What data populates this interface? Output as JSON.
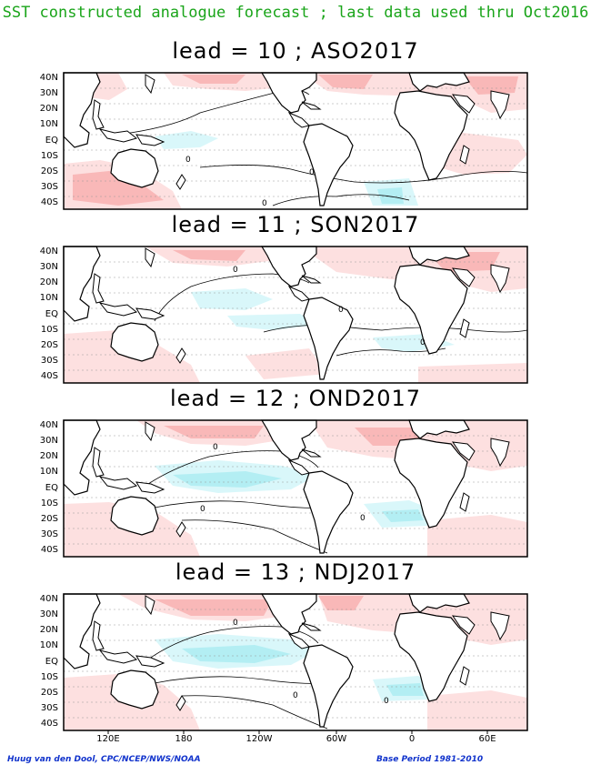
{
  "header": {
    "title": "SST constructed analogue forecast ; last data used thru Oct2016"
  },
  "panels": [
    {
      "title": "lead = 10 ; ASO2017"
    },
    {
      "title": "lead = 11 ; SON2017"
    },
    {
      "title": "lead = 12 ; OND2017"
    },
    {
      "title": "lead = 13 ; NDJ2017"
    }
  ],
  "lat_labels": [
    "40N",
    "30N",
    "20N",
    "10N",
    "EQ",
    "10S",
    "20S",
    "30S",
    "40S"
  ],
  "lon_labels": [
    "120E",
    "180",
    "120W",
    "60W",
    "0",
    "60E"
  ],
  "contour_label": "0",
  "footer": {
    "left": "Huug van den Dool, CPC/NCEP/NWS/NOAA",
    "right": "Base Period 1981-2010"
  },
  "colors": {
    "title": "#1aa51a",
    "warm_light": "#fde0e0",
    "warm_medium": "#f9b8b8",
    "cool_light": "#d9f7fa",
    "cool_medium": "#b3eef3",
    "footer": "#1133cc"
  }
}
